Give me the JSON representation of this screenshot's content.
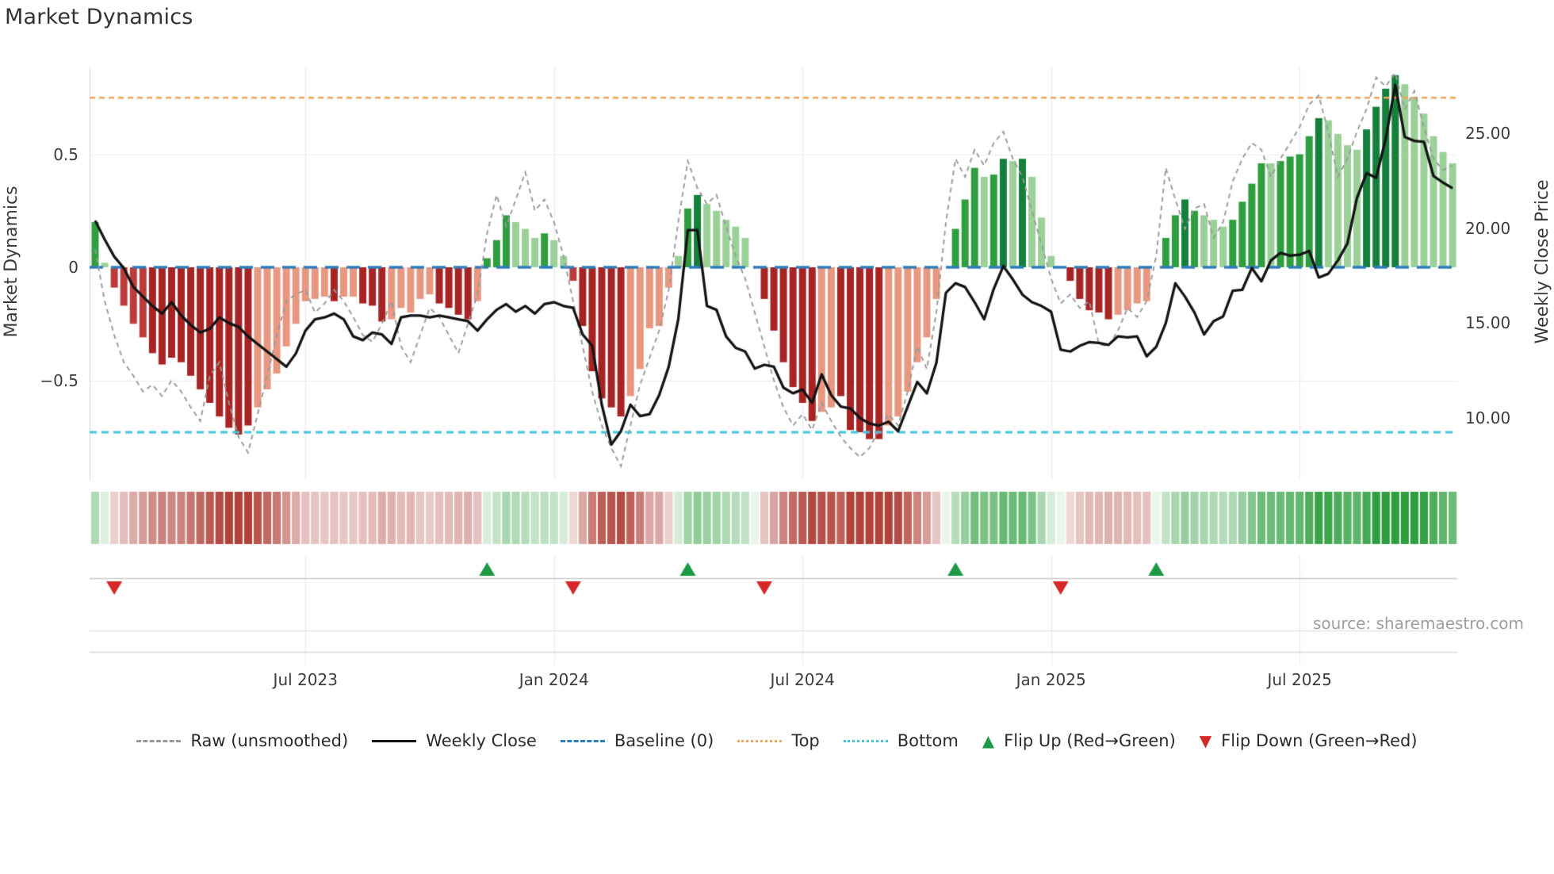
{
  "title": "Market Dynamics",
  "source": "source: sharemaestro.com",
  "axes": {
    "left": {
      "label": "Market Dynamics",
      "ticks": [
        {
          "v": 0.5,
          "label": "0.5"
        },
        {
          "v": 0,
          "label": "0"
        },
        {
          "v": -0.5,
          "label": "−0.5"
        }
      ]
    },
    "right": {
      "label": "Weekly Close Price",
      "ticks": [
        {
          "v": 25,
          "label": "25.00"
        },
        {
          "v": 20,
          "label": "20.00"
        },
        {
          "v": 15,
          "label": "15.00"
        },
        {
          "v": 10,
          "label": "10.00"
        }
      ]
    },
    "x": {
      "ticks": [
        {
          "week": 22,
          "label": "Jul 2023"
        },
        {
          "week": 48,
          "label": "Jan 2024"
        },
        {
          "week": 74,
          "label": "Jul 2024"
        },
        {
          "week": 100,
          "label": "Jan 2025"
        },
        {
          "week": 126,
          "label": "Jul 2025"
        }
      ]
    }
  },
  "legend": {
    "items": [
      {
        "label": "Raw (unsmoothed)",
        "type": "dash-gray",
        "color": "#999999"
      },
      {
        "label": "Weekly Close",
        "type": "solid-black",
        "color": "#141414"
      },
      {
        "label": "Baseline (0)",
        "type": "dash-blue",
        "color": "#2f7ebc"
      },
      {
        "label": "Top",
        "type": "dot-orange",
        "color": "#f2a45c"
      },
      {
        "label": "Bottom",
        "type": "dot-cyan",
        "color": "#3ec6e0"
      },
      {
        "label": "Flip Up (Red→Green)",
        "type": "tri-up",
        "color": "#1f9a44"
      },
      {
        "label": "Flip Down (Green→Red)",
        "type": "tri-down",
        "color": "#d62828"
      }
    ]
  },
  "colors": {
    "bar_palette": {
      "dg": "#157f3c",
      "g": "#2f9e3f",
      "lg": "#9bd198",
      "dr": "#a82424",
      "r": "#bc3c3c",
      "s": "#e89880"
    },
    "heat_green": "#2f9e3f",
    "heat_red": "#b0423a",
    "baseline": "#2f7ebc",
    "top_line": "#f2a45c",
    "bottom_line": "#3ec6e0",
    "close_line": "#141414",
    "raw_line": "#999999",
    "grid": "#ebebf2",
    "spine": "#d8d8e0",
    "panel_line": "#c9c9c9",
    "text": "#3c3c3c"
  },
  "chart_data": {
    "type": "bar",
    "subtype": "oscillator-with-price-overlay",
    "title": "Market Dynamics",
    "xlabel": "",
    "ylabel": "Market Dynamics",
    "ylabel_right": "Weekly Close Price",
    "x_start": "2023-01-30",
    "x_freq": "weekly",
    "n_weeks": 143,
    "osc_ylim": [
      -0.9,
      0.9
    ],
    "price_ylim": [
      8.1,
      28.3
    ],
    "baseline": 0,
    "top_band": 0.75,
    "bottom_band": -0.73,
    "grid": true,
    "legend_position": "bottom",
    "series": [
      {
        "name": "Market Dynamics (bars)",
        "axis": "left"
      },
      {
        "name": "Raw (unsmoothed)",
        "axis": "left"
      },
      {
        "name": "Weekly Close",
        "axis": "right"
      }
    ],
    "osc": [
      0.2,
      0.02,
      -0.09,
      -0.17,
      -0.25,
      -0.31,
      -0.38,
      -0.43,
      -0.4,
      -0.42,
      -0.48,
      -0.54,
      -0.6,
      -0.66,
      -0.71,
      -0.74,
      -0.7,
      -0.62,
      -0.54,
      -0.47,
      -0.35,
      -0.25,
      -0.15,
      -0.14,
      -0.13,
      -0.15,
      -0.13,
      -0.13,
      -0.16,
      -0.17,
      -0.24,
      -0.23,
      -0.18,
      -0.2,
      -0.14,
      -0.12,
      -0.16,
      -0.18,
      -0.21,
      -0.23,
      -0.15,
      0.04,
      0.12,
      0.23,
      0.2,
      0.17,
      0.13,
      0.15,
      0.12,
      0.05,
      -0.06,
      -0.26,
      -0.46,
      -0.58,
      -0.62,
      -0.66,
      -0.57,
      -0.45,
      -0.27,
      -0.26,
      -0.09,
      0.05,
      0.26,
      0.32,
      0.28,
      0.25,
      0.21,
      0.18,
      0.13,
      0,
      -0.14,
      -0.28,
      -0.42,
      -0.53,
      -0.6,
      -0.68,
      -0.64,
      -0.62,
      -0.57,
      -0.72,
      -0.73,
      -0.76,
      -0.76,
      -0.7,
      -0.66,
      -0.55,
      -0.42,
      -0.31,
      -0.14,
      0,
      0.17,
      0.3,
      0.44,
      0.4,
      0.41,
      0.48,
      0.47,
      0.48,
      0.4,
      0.22,
      0.05,
      0,
      -0.06,
      -0.14,
      -0.19,
      -0.2,
      -0.23,
      -0.21,
      -0.19,
      -0.16,
      -0.15,
      0,
      0.13,
      0.23,
      0.3,
      0.25,
      0.23,
      0.21,
      0.18,
      0.21,
      0.29,
      0.37,
      0.46,
      0.46,
      0.47,
      0.49,
      0.5,
      0.58,
      0.66,
      0.65,
      0.59,
      0.54,
      0.52,
      0.61,
      0.71,
      0.79,
      0.85,
      0.81,
      0.75,
      0.68,
      0.58,
      0.51,
      0.46
    ],
    "bar_class": [
      "g",
      "lg",
      "r",
      "r",
      "r",
      "r",
      "dr",
      "dr",
      "dr",
      "dr",
      "dr",
      "dr",
      "dr",
      "dr",
      "dr",
      "dr",
      "dr",
      "s",
      "s",
      "s",
      "s",
      "s",
      "s",
      "s",
      "s",
      "dr",
      "s",
      "s",
      "dr",
      "dr",
      "dr",
      "s",
      "s",
      "s",
      "s",
      "s",
      "dr",
      "dr",
      "dr",
      "dr",
      "s",
      "g",
      "g",
      "g",
      "lg",
      "lg",
      "lg",
      "g",
      "lg",
      "lg",
      "r",
      "dr",
      "dr",
      "dr",
      "dr",
      "dr",
      "s",
      "s",
      "s",
      "s",
      "s",
      "lg",
      "g",
      "dg",
      "lg",
      "lg",
      "lg",
      "lg",
      "lg",
      "z",
      "dr",
      "dr",
      "dr",
      "dr",
      "dr",
      "dr",
      "s",
      "s",
      "dr",
      "dr",
      "dr",
      "dr",
      "dr",
      "s",
      "s",
      "s",
      "s",
      "s",
      "s",
      "z",
      "g",
      "g",
      "g",
      "lg",
      "g",
      "dg",
      "lg",
      "dg",
      "lg",
      "lg",
      "lg",
      "z",
      "dr",
      "dr",
      "dr",
      "dr",
      "dr",
      "s",
      "s",
      "s",
      "s",
      "z",
      "g",
      "g",
      "dg",
      "g",
      "lg",
      "lg",
      "lg",
      "g",
      "g",
      "g",
      "g",
      "lg",
      "g",
      "g",
      "g",
      "g",
      "dg",
      "lg",
      "lg",
      "lg",
      "lg",
      "dg",
      "dg",
      "dg",
      "dg",
      "lg",
      "lg",
      "lg",
      "lg",
      "lg",
      "lg"
    ],
    "close": [
      20.4,
      19.4,
      18.5,
      17.9,
      16.9,
      16.4,
      15.9,
      15.5,
      16.1,
      15.4,
      14.9,
      14.5,
      14.7,
      15.3,
      15.0,
      14.8,
      14.3,
      13.9,
      13.5,
      13.1,
      12.7,
      13.4,
      14.6,
      15.2,
      15.3,
      15.5,
      15.2,
      14.3,
      14.1,
      14.5,
      14.4,
      13.9,
      15.3,
      15.4,
      15.4,
      15.3,
      15.4,
      15.3,
      15.2,
      15.1,
      14.6,
      15.2,
      15.7,
      16.0,
      15.6,
      15.9,
      15.5,
      16.0,
      16.1,
      15.9,
      15.8,
      14.4,
      13.8,
      10.7,
      8.6,
      9.3,
      10.7,
      10.1,
      10.2,
      11.2,
      12.7,
      15.2,
      19.9,
      19.9,
      15.9,
      15.7,
      14.3,
      13.7,
      13.5,
      12.6,
      12.8,
      12.7,
      11.6,
      11.3,
      11.5,
      10.8,
      12.3,
      11.2,
      10.6,
      10.5,
      10.0,
      9.7,
      9.6,
      9.8,
      9.3,
      10.6,
      11.9,
      11.3,
      12.9,
      16.6,
      17.1,
      16.9,
      16.1,
      15.2,
      16.8,
      18.0,
      17.3,
      16.5,
      16.1,
      15.9,
      15.6,
      13.6,
      13.5,
      13.8,
      14.0,
      13.95,
      13.85,
      14.3,
      14.25,
      14.3,
      13.25,
      13.75,
      15.0,
      17.1,
      16.4,
      15.55,
      14.4,
      15.1,
      15.35,
      16.7,
      16.75,
      17.9,
      17.2,
      18.3,
      18.7,
      18.55,
      18.6,
      18.8,
      17.4,
      17.6,
      18.3,
      19.2,
      21.6,
      22.9,
      22.65,
      24.7,
      27.55,
      24.8,
      24.6,
      24.55,
      22.75,
      22.4,
      22.1
    ],
    "raw": [
      0.08,
      -0.15,
      -0.3,
      -0.42,
      -0.48,
      -0.55,
      -0.52,
      -0.57,
      -0.5,
      -0.55,
      -0.62,
      -0.68,
      -0.48,
      -0.42,
      -0.6,
      -0.75,
      -0.82,
      -0.65,
      -0.48,
      -0.3,
      -0.15,
      -0.12,
      -0.1,
      -0.2,
      -0.16,
      -0.1,
      -0.15,
      -0.22,
      -0.3,
      -0.33,
      -0.25,
      -0.15,
      -0.35,
      -0.42,
      -0.3,
      -0.18,
      -0.22,
      -0.3,
      -0.38,
      -0.25,
      -0.12,
      0.15,
      0.32,
      0.18,
      0.3,
      0.42,
      0.25,
      0.3,
      0.2,
      0.05,
      -0.15,
      -0.35,
      -0.55,
      -0.7,
      -0.8,
      -0.88,
      -0.7,
      -0.52,
      -0.4,
      -0.28,
      -0.1,
      0.2,
      0.47,
      0.35,
      0.28,
      0.32,
      0.18,
      0.05,
      -0.05,
      -0.2,
      -0.35,
      -0.5,
      -0.62,
      -0.7,
      -0.65,
      -0.72,
      -0.6,
      -0.68,
      -0.75,
      -0.8,
      -0.84,
      -0.8,
      -0.72,
      -0.65,
      -0.7,
      -0.55,
      -0.35,
      -0.45,
      -0.2,
      0.2,
      0.48,
      0.4,
      0.52,
      0.45,
      0.55,
      0.6,
      0.48,
      0.4,
      0.25,
      0.1,
      -0.05,
      -0.16,
      -0.12,
      -0.18,
      -0.15,
      -0.34,
      -0.35,
      -0.28,
      -0.18,
      -0.22,
      -0.15,
      0.05,
      0.44,
      0.3,
      0.17,
      0.26,
      0.28,
      0.13,
      0.2,
      0.38,
      0.48,
      0.55,
      0.52,
      0.4,
      0.48,
      0.55,
      0.62,
      0.72,
      0.76,
      0.6,
      0.4,
      0.48,
      0.6,
      0.7,
      0.84,
      0.8,
      0.86,
      0.7,
      0.78,
      0.62,
      0.48,
      0.43,
      0.45
    ],
    "flip_up_weeks": [
      41,
      62,
      90,
      111
    ],
    "flip_down_weeks": [
      2,
      50,
      70,
      101
    ]
  }
}
